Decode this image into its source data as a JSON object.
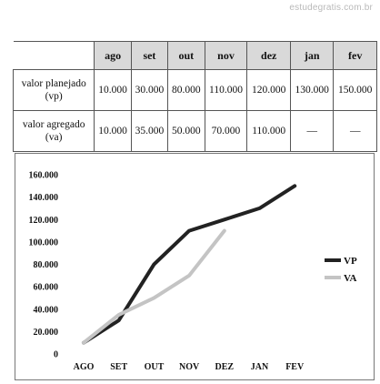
{
  "watermark": "estudegratis.com.br",
  "table": {
    "columns": [
      "ago",
      "set",
      "out",
      "nov",
      "dez",
      "jan",
      "fev"
    ],
    "rows": [
      {
        "label_line1": "valor planejado",
        "label_line2": "(vp)",
        "values": [
          "10.000",
          "30.000",
          "80.000",
          "110.000",
          "120.000",
          "130.000",
          "150.000"
        ]
      },
      {
        "label_line1": "valor agregado",
        "label_line2": "(va)",
        "values": [
          "10.000",
          "35.000",
          "50.000",
          "70.000",
          "110.000",
          "—",
          "—"
        ]
      }
    ]
  },
  "chart_data": {
    "type": "line",
    "categories": [
      "AGO",
      "SET",
      "OUT",
      "NOV",
      "DEZ",
      "JAN",
      "FEV"
    ],
    "y_ticks": [
      "0",
      "20.000",
      "40.000",
      "60.000",
      "80.000",
      "100.000",
      "120.000",
      "140.000",
      "160.000"
    ],
    "ylim": [
      0,
      160000
    ],
    "grid": false,
    "legend_position": "right",
    "series": [
      {
        "name": "VP",
        "color": "#222222",
        "values": [
          10000,
          30000,
          80000,
          110000,
          120000,
          130000,
          150000
        ]
      },
      {
        "name": "VA",
        "color": "#c4c4c4",
        "values": [
          10000,
          35000,
          50000,
          70000,
          110000,
          null,
          null
        ]
      }
    ]
  }
}
